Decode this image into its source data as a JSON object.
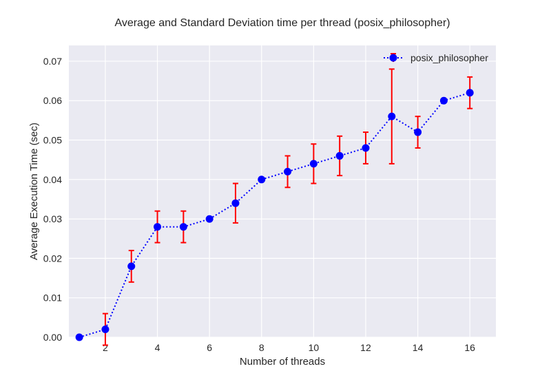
{
  "chart_data": {
    "type": "line",
    "title": "Average and Standard Deviation time per thread (posix_philosopher)",
    "xlabel": "Number of threads",
    "ylabel": "Average Execution Time (sec)",
    "xlim": [
      0.6,
      17.0
    ],
    "ylim": [
      0.0,
      0.074
    ],
    "x_ticks": [
      2,
      4,
      6,
      8,
      10,
      12,
      14,
      16
    ],
    "y_ticks": [
      0.0,
      0.01,
      0.02,
      0.03,
      0.04,
      0.05,
      0.06,
      0.07
    ],
    "y_tick_labels": [
      "0.00",
      "0.01",
      "0.02",
      "0.03",
      "0.04",
      "0.05",
      "0.06",
      "0.07"
    ],
    "grid": true,
    "legend_position": "top-right",
    "series": [
      {
        "name": "posix_philosopher",
        "line_style": "dotted",
        "marker": "circle",
        "line_color": "#0000ff",
        "errorbar_color": "#ff0000",
        "x": [
          1,
          2,
          3,
          4,
          5,
          6,
          7,
          8,
          9,
          10,
          11,
          12,
          13,
          14,
          15,
          16
        ],
        "y": [
          0.0,
          0.002,
          0.018,
          0.028,
          0.028,
          0.03,
          0.034,
          0.04,
          0.042,
          0.044,
          0.046,
          0.048,
          0.056,
          0.052,
          0.06,
          0.062
        ],
        "yerr": [
          0.0,
          0.004,
          0.004,
          0.004,
          0.004,
          0.0,
          0.005,
          0.0,
          0.004,
          0.005,
          0.005,
          0.004,
          0.012,
          0.004,
          0.0,
          0.004
        ]
      }
    ],
    "colors": {
      "plot_background": "#eaeaf2",
      "grid": "#ffffff"
    }
  }
}
